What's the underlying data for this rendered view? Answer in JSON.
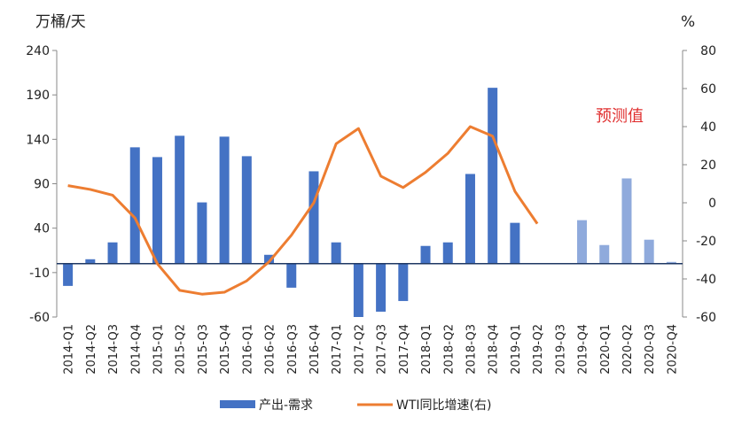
{
  "chart_data": {
    "type": "bar_line",
    "y_label": "万桶/天",
    "y2_label": "%",
    "annotation": "预测值",
    "categories": [
      "2014-Q1",
      "2014-Q2",
      "2014-Q3",
      "2014-Q4",
      "2015-Q1",
      "2015-Q2",
      "2015-Q3",
      "2015-Q4",
      "2016-Q1",
      "2016-Q2",
      "2016-Q3",
      "2016-Q4",
      "2017-Q1",
      "2017-Q2",
      "2017-Q3",
      "2017-Q4",
      "2018-Q1",
      "2018-Q2",
      "2018-Q3",
      "2018-Q4",
      "2019-Q1",
      "2019-Q2",
      "2019-Q3",
      "2019-Q4",
      "2020-Q1",
      "2020-Q2",
      "2020-Q3",
      "2020-Q4"
    ],
    "series": [
      {
        "name": "产出-需求",
        "type": "bar",
        "color": "#4472c4",
        "colors": [
          "#4472c4",
          "#4472c4",
          "#4472c4",
          "#4472c4",
          "#4472c4",
          "#4472c4",
          "#4472c4",
          "#4472c4",
          "#4472c4",
          "#4472c4",
          "#4472c4",
          "#4472c4",
          "#4472c4",
          "#4472c4",
          "#4472c4",
          "#4472c4",
          "#4472c4",
          "#4472c4",
          "#4472c4",
          "#4472c4",
          "#4472c4",
          "#4472c4",
          "#4472c4",
          "#8faadc",
          "#8faadc",
          "#8faadc",
          "#8faadc",
          "#8faadc"
        ],
        "values": [
          -25,
          5,
          24,
          131,
          120,
          144,
          69,
          143,
          121,
          10,
          -27,
          104,
          24,
          -60,
          -54,
          -42,
          20,
          24,
          101,
          198,
          46,
          null,
          null,
          49,
          21,
          96,
          27,
          2
        ]
      },
      {
        "name": "WTI同比增速(右)",
        "type": "line",
        "axis": "y2",
        "color": "#ed7d31",
        "values": [
          9,
          7,
          4,
          -8,
          -32,
          -46,
          -48,
          -47,
          -41,
          -31,
          -17,
          0,
          31,
          39,
          14,
          8,
          16,
          26,
          40,
          35,
          6,
          -11,
          null,
          null,
          null,
          null,
          null,
          null
        ]
      }
    ],
    "ylim": [
      -60,
      240
    ],
    "yticks": [
      -60,
      -10,
      40,
      90,
      140,
      190,
      240
    ],
    "y2lim": [
      -60,
      80
    ],
    "y2ticks": [
      -60,
      -40,
      -20,
      0,
      20,
      40,
      60,
      80
    ],
    "annotation_color": "#e03030"
  }
}
